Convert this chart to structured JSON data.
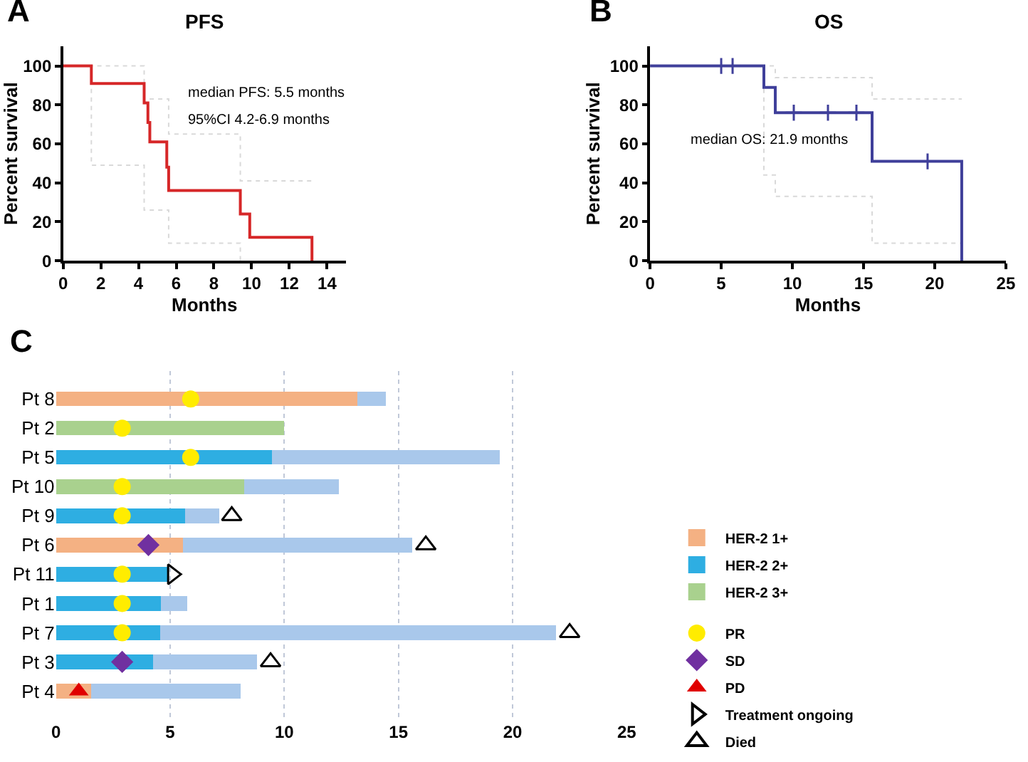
{
  "chart_data": [
    {
      "type": "step",
      "title": "PFS",
      "xlabel": "Months",
      "ylabel": "Percent survival",
      "xlim": [
        0,
        15
      ],
      "ylim": [
        0,
        110
      ],
      "xticks": [
        0,
        2,
        4,
        6,
        8,
        10,
        12,
        14
      ],
      "yticks": [
        0,
        20,
        40,
        60,
        80,
        100
      ],
      "grid": false,
      "legend": false,
      "annotations": [
        "A",
        "median PFS: 5.5 months",
        "95%CI 4.2-6.9 months"
      ],
      "series": [
        {
          "color": "#d9d9d9",
          "line_style": "dotted",
          "x": [
            0,
            4.3,
            5.6,
            9.4,
            13.2
          ],
          "values": [
            100,
            83,
            65,
            41,
            41
          ]
        },
        {
          "color": "#d9d9d9",
          "line_style": "dotted",
          "x": [
            0,
            1.5,
            4.3,
            5.6,
            9.4
          ],
          "values": [
            100,
            49,
            26,
            9,
            0
          ]
        },
        {
          "color": "#d62728",
          "line_style": "solid",
          "x": [
            0,
            1.5,
            4.3,
            4.5,
            4.6,
            5.5,
            5.6,
            9.4,
            9.9,
            13.2
          ],
          "values": [
            100,
            91,
            81,
            71,
            61,
            48,
            36,
            24,
            12,
            0
          ]
        }
      ]
    },
    {
      "type": "step",
      "title": "OS",
      "xlabel": "Months",
      "ylabel": "Percent survival",
      "xlim": [
        0,
        25
      ],
      "ylim": [
        0,
        110
      ],
      "xticks": [
        0,
        5,
        10,
        15,
        20,
        25
      ],
      "yticks": [
        0,
        20,
        40,
        60,
        80,
        100
      ],
      "grid": false,
      "legend": false,
      "annotations": [
        "B",
        "median OS: 21.9 months"
      ],
      "series": [
        {
          "color": "#d9d9d9",
          "line_style": "dotted",
          "x": [
            0,
            8.8,
            15.6,
            21.9
          ],
          "values": [
            100,
            94,
            83,
            83
          ]
        },
        {
          "color": "#d9d9d9",
          "line_style": "dotted",
          "x": [
            0,
            8.0,
            8.8,
            15.6,
            21.9
          ],
          "values": [
            100,
            44,
            33,
            9,
            9
          ]
        },
        {
          "color": "#3f3f9a",
          "line_style": "solid",
          "x": [
            0,
            8.0,
            8.8,
            15.6,
            21.9
          ],
          "values": [
            100,
            89,
            76,
            51,
            0
          ]
        },
        {
          "type": "scatter",
          "marker": "cross",
          "color": "#3f3f9a",
          "x": [
            5.0,
            5.8,
            10.1,
            12.5,
            14.5,
            19.5
          ],
          "values": [
            100,
            100,
            76,
            76,
            76,
            51
          ]
        }
      ]
    },
    {
      "type": "bar",
      "orientation": "horizontal",
      "stacked": true,
      "xlim": [
        0,
        25
      ],
      "xticks": [
        0,
        5,
        10,
        15,
        20,
        25
      ],
      "grid": "x",
      "legend": "right",
      "annotations": [
        "C"
      ],
      "categories": [
        "Pt 8",
        "Pt 2",
        "Pt 5",
        "Pt 10",
        "Pt 9",
        "Pt 6",
        "Pt 11",
        "Pt 1",
        "Pt 7",
        "Pt 3",
        "Pt 4"
      ],
      "series": [
        {
          "name": "HER-2 1+",
          "color": "#f4b183",
          "values": [
            13.2,
            null,
            null,
            null,
            null,
            5.55,
            null,
            null,
            null,
            null,
            1.55
          ]
        },
        {
          "name": "HER-2 2+",
          "color": "#2eaee2",
          "values": [
            null,
            null,
            9.45,
            null,
            5.65,
            null,
            4.9,
            4.6,
            4.55,
            4.25,
            null
          ]
        },
        {
          "name": "HER-2 3+",
          "color": "#a9d18e",
          "values": [
            null,
            10.0,
            null,
            8.25,
            null,
            null,
            null,
            null,
            null,
            null,
            null
          ]
        },
        {
          "color": "#a9c8eb",
          "values": [
            1.25,
            null,
            10.0,
            4.15,
            1.5,
            10.05,
            null,
            1.15,
            17.35,
            4.55,
            6.55
          ]
        },
        {
          "name": "PR",
          "type": "scatter",
          "marker": "circle",
          "color": "#ffec00",
          "x": [
            "Pt 8",
            "Pt 2",
            "Pt 5",
            "Pt 10",
            "Pt 9",
            "Pt 11",
            "Pt 1",
            "Pt 7"
          ],
          "values": [
            5.9,
            2.9,
            5.9,
            2.9,
            2.9,
            2.9,
            2.9,
            2.9
          ]
        },
        {
          "name": "SD",
          "type": "scatter",
          "marker": "diamond",
          "color": "#7030a0",
          "x": [
            "Pt 6",
            "Pt 3"
          ],
          "values": [
            4.05,
            2.9
          ]
        },
        {
          "name": "PD",
          "type": "scatter",
          "marker": "triangle",
          "color": "#e00000",
          "x": [
            "Pt 4"
          ],
          "values": [
            1.0
          ]
        },
        {
          "name": "Treatment ongoing",
          "type": "scatter",
          "marker": "triangle-right-open",
          "color": "#000000",
          "x": [
            "Pt 11"
          ],
          "values": [
            5.1
          ]
        },
        {
          "name": "Died",
          "type": "scatter",
          "marker": "triangle-open",
          "color": "#000000",
          "x": [
            "Pt 9",
            "Pt 6",
            "Pt 7",
            "Pt 3"
          ],
          "values": [
            7.7,
            16.2,
            22.5,
            9.4
          ]
        }
      ]
    }
  ]
}
